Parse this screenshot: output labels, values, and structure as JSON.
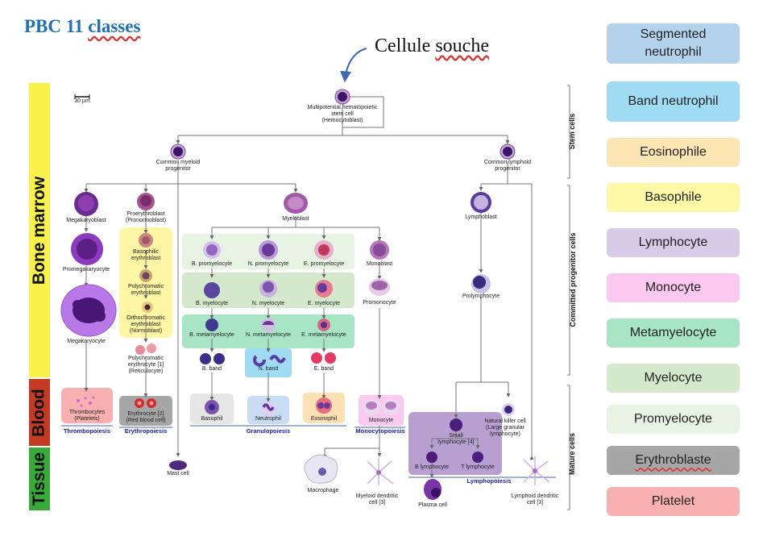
{
  "title": {
    "prefix": "PBC 11",
    "word": "classes"
  },
  "stem_label": {
    "prefix": "Cellule",
    "word": "souche"
  },
  "scale_bar": "30 µm",
  "regions": {
    "bone_marrow": "Bone marrow",
    "blood": "Blood",
    "tissue": "Tissue"
  },
  "colors": {
    "bone_marrow": "#f7f14a",
    "blood": "#c43a22",
    "tissue": "#39a93a",
    "title": "#1f6fb5"
  },
  "right_labels": {
    "stem": "Stem cells",
    "committed": "Committed progenitor cells",
    "mature": "Mature cells"
  },
  "cells": {
    "hsc": "Multipotential hematopoietic\nstem cell\n(Hemocytoblast)",
    "cmp": "Common myeloid\nprogenitor",
    "clp": "Common lymphoid\nprogenitor",
    "megakaryoblast": "Megakaryoblast",
    "proerythroblast": "Proerythroblast\n(Pronormoblast)",
    "myeloblast": "Myeloblast",
    "lymphoblast": "Lymphoblast",
    "promegakaryocyte": "Promegakaryocyte",
    "baso_erythro": "Basophilic\nerythroblast",
    "b_promyelocyte": "B. promyelocyte",
    "n_promyelocyte": "N. promyelocyte",
    "e_promyelocyte": "E. promyelocyte",
    "monoblast": "Monoblast",
    "poly_erythro": "Polychromatic\nerythroblast",
    "b_myelocyte": "B. myelocyte",
    "n_myelocyte": "N. myelocyte",
    "e_myelocyte": "E. myelocyte",
    "promonocyte": "Promonocyte",
    "prolymphocyte": "Prolymphocyte",
    "megakaryocyte": "Megakaryocyte",
    "ortho_erythro": "Orthochromatic\nerythroblast\n(Normoblast)",
    "b_metamyelocyte": "B. metamyelocyte",
    "n_metamyelocyte": "N. metamyelocyte",
    "e_metamyelocyte": "E. metamyelocyte",
    "reticulocyte": "Polychromatic\nerythrocyte [1]\n(Reticulocyte)",
    "b_band": "B. band",
    "n_band": "N. band",
    "e_band": "E. band",
    "thrombocytes": "Thrombocytes\n(Platelets)",
    "erythrocyte": "Erythrocyte [2]\n(Red blood cell)",
    "basophil": "Basophil",
    "neutrophil": "Neutrophil",
    "eosinophil": "Eosinophil",
    "monocyte": "Monocyte",
    "nk_cell": "Natural killer cell\n(Large granular\nlymphocyte)",
    "small_lymphocyte": "Small\nlymphocyte [4]",
    "b_lymphocyte": "B lymphocyte",
    "t_lymphocyte": "T lymphocyte",
    "mast_cell": "Mast cell",
    "macrophage": "Macrophage",
    "myeloid_dc": "Myeloid dendritic\ncell [3]",
    "plasma_cell": "Plasma cell",
    "lymphoid_dc": "Lymphoid dendritic\ncell [3]"
  },
  "lineages": {
    "thrombopoiesis": "Thrombopoiesis",
    "erythropoiesis": "Erythropoiesis",
    "granulopoiesis": "Granulopoiesis",
    "monocytopoiesis": "Monocytopoiesis",
    "lymphopoiesis": "Lymphopoiesis"
  },
  "legend": [
    {
      "label": "Segmented neutrophil",
      "color": "#b3d3ec"
    },
    {
      "label": "Band neutrophil",
      "color": "#9fdcf4"
    },
    {
      "label": "Eosinophile",
      "color": "#fde6b4"
    },
    {
      "label": "Basophile",
      "color": "#fdf8a6"
    },
    {
      "label": "Lymphocyte",
      "color": "#d8cbe8"
    },
    {
      "label": "Monocyte",
      "color": "#fbc8ef"
    },
    {
      "label": "Metamyelocyte",
      "color": "#a8e5c4"
    },
    {
      "label": "Myelocyte",
      "color": "#d4e9cc"
    },
    {
      "label": "Promyelocyte",
      "color": "#e7f4e3"
    },
    {
      "label": "Erythroblaste",
      "color": "#a6a6a6"
    },
    {
      "label": "Platelet",
      "color": "#f9b0b0"
    }
  ]
}
